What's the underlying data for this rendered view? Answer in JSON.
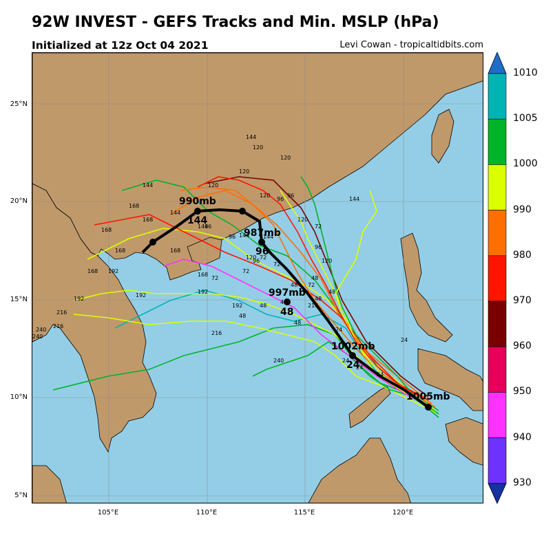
{
  "title": "92W INVEST - GEFS Tracks and Min. MSLP (hPa)",
  "subtitle": "Initialized at 12z Oct 04 2021",
  "credit": "Levi Cowan - tropicaltidbits.com",
  "lat_labels": [
    "25°N",
    "20°N",
    "15°N",
    "10°N",
    "5°N"
  ],
  "lon_labels": [
    "105°E",
    "110°E",
    "115°E",
    "120°E"
  ],
  "colorbar": {
    "ticks": [
      "1010",
      "1005",
      "1000",
      "990",
      "980",
      "970",
      "960",
      "950",
      "940",
      "930"
    ],
    "colors": [
      "#00b4b4",
      "#00b42a",
      "#dcff00",
      "#ff6e00",
      "#ff1400",
      "#780000",
      "#e6005a",
      "#ff32ff",
      "#6e32ff"
    ],
    "end_colors": [
      "#1e6ec8",
      "#1432a0"
    ]
  },
  "mean_track": {
    "labels": [
      {
        "mslp": "1005mb",
        "hour": ""
      },
      {
        "mslp": "1002mb",
        "hour": "24"
      },
      {
        "mslp": "997mb",
        "hour": "48"
      },
      {
        "mslp": "987mb",
        "hour": "96"
      },
      {
        "mslp": "990mb",
        "hour": "144"
      }
    ]
  },
  "member_labels": [
    "24",
    "24",
    "24",
    "24",
    "24",
    "48",
    "48",
    "48",
    "48",
    "48",
    "48",
    "48",
    "48",
    "72",
    "72",
    "72",
    "72",
    "72",
    "72",
    "96",
    "96",
    "96",
    "96",
    "96",
    "96",
    "120",
    "120",
    "120",
    "120",
    "120",
    "120",
    "120",
    "120",
    "144",
    "144",
    "144",
    "144",
    "144",
    "144",
    "144",
    "168",
    "168",
    "168",
    "168",
    "168",
    "168",
    "168",
    "192",
    "192",
    "192",
    "192",
    "192",
    "216",
    "216",
    "216",
    "216",
    "240",
    "240",
    "240"
  ],
  "colors": {
    "land": "#c0996b",
    "ocean": "#93cee6",
    "mean_track": "#000000"
  }
}
